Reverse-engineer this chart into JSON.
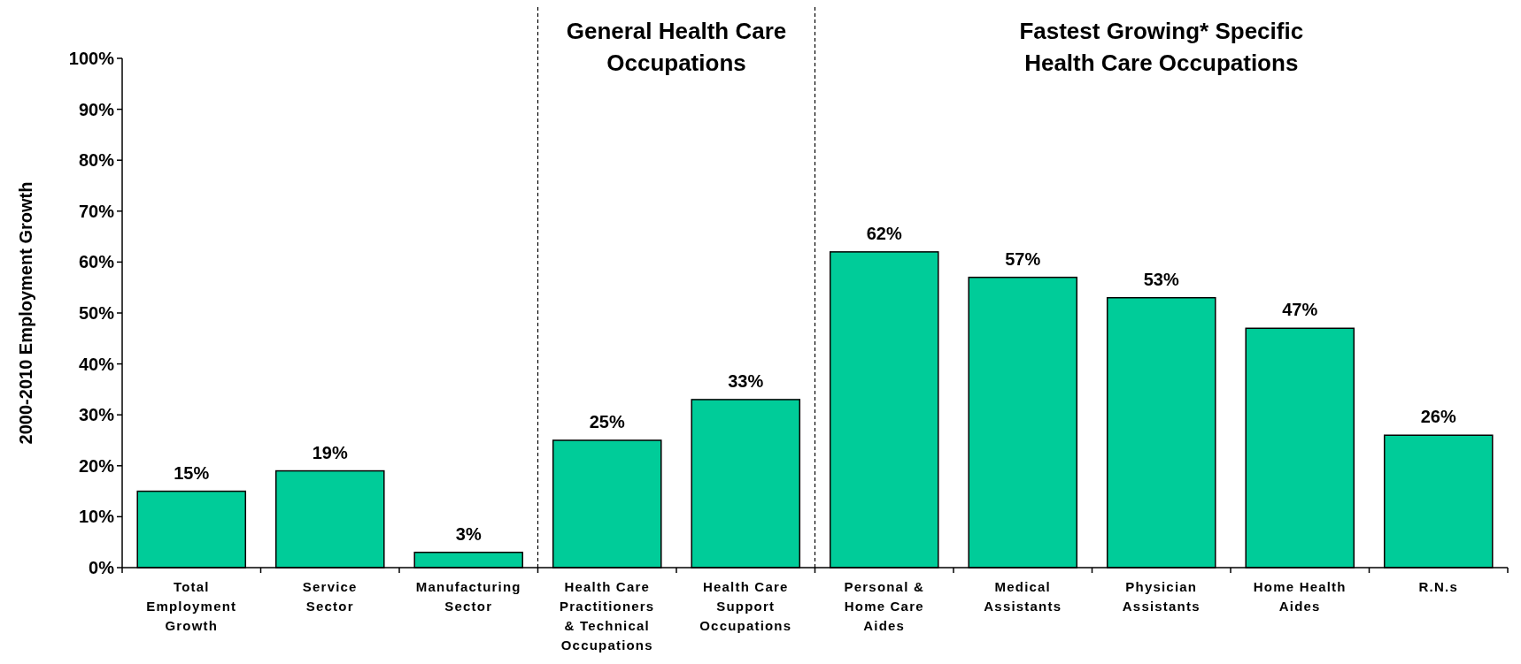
{
  "chart_data": {
    "type": "bar",
    "ylabel": "2000-2010 Employment Growth",
    "categories": [
      "Total Employment Growth",
      "Service Sector",
      "Manufacturing Sector",
      "Health Care Practitioners & Technical Occupations",
      "Health Care Support Occupations",
      "Personal & Home Care Aides",
      "Medical Assistants",
      "Physician Assistants",
      "Home Health Aides",
      "R.N.s"
    ],
    "values": [
      15,
      19,
      3,
      25,
      33,
      62,
      57,
      53,
      47,
      26
    ],
    "value_labels": [
      "15%",
      "19%",
      "3%",
      "25%",
      "33%",
      "62%",
      "57%",
      "53%",
      "47%",
      "26%"
    ],
    "color": "#00cc99",
    "ylim": [
      0,
      100
    ],
    "yticks": [
      {
        "value": 0,
        "label": "0%"
      },
      {
        "value": 10,
        "label": "10%"
      },
      {
        "value": 20,
        "label": "20%"
      },
      {
        "value": 30,
        "label": "30%"
      },
      {
        "value": 40,
        "label": "40%"
      },
      {
        "value": 50,
        "label": "50%"
      },
      {
        "value": 60,
        "label": "60%"
      },
      {
        "value": 70,
        "label": "70%"
      },
      {
        "value": 80,
        "label": "80%"
      },
      {
        "value": 90,
        "label": "90%"
      },
      {
        "value": 100,
        "label": "100%"
      }
    ],
    "annotations": [
      "General Health Care Occupations",
      "Fastest Growing* Specific Health Care Occupations"
    ],
    "grid": false
  }
}
